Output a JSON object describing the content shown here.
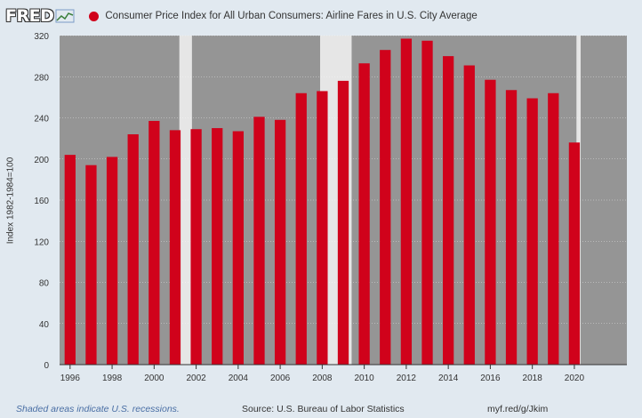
{
  "header": {
    "logo_text": "FRED",
    "logo_icon": "line-graph-icon",
    "title": "Consumer Price Index for All Urban Consumers: Airline Fares in U.S. City Average"
  },
  "footer": {
    "recession_note": "Shaded areas indicate U.S. recessions.",
    "source": "Source: U.S. Bureau of Labor Statistics",
    "url": "myf.red/g/Jkim"
  },
  "colors": {
    "bar": "#d0021b",
    "plot_bg": "#959595",
    "recession": "#e6e6e6",
    "page_bg": "#e1e9f0"
  },
  "chart_data": {
    "type": "bar",
    "title": "Consumer Price Index for All Urban Consumers: Airline Fares in U.S. City Average",
    "ylabel": "Index 1982-1984=100",
    "xlabel": "",
    "ylim": [
      0,
      320
    ],
    "yticks": [
      0,
      40,
      80,
      120,
      160,
      200,
      240,
      280,
      320
    ],
    "xticks": [
      "1996",
      "1998",
      "2000",
      "2002",
      "2004",
      "2006",
      "2008",
      "2010",
      "2012",
      "2014",
      "2016",
      "2018",
      "2020"
    ],
    "x": [
      1996,
      1997,
      1998,
      1999,
      2000,
      2001,
      2002,
      2003,
      2004,
      2005,
      2006,
      2007,
      2008,
      2009,
      2010,
      2011,
      2012,
      2013,
      2014,
      2015,
      2016,
      2017,
      2018,
      2019,
      2020
    ],
    "values": [
      204,
      194,
      202,
      224,
      237,
      228,
      229,
      230,
      227,
      241,
      238,
      264,
      266,
      276,
      293,
      306,
      317,
      315,
      300,
      291,
      277,
      267,
      259,
      264,
      216
    ],
    "recessions": [
      [
        2001.2,
        2001.8
      ],
      [
        2007.9,
        2009.4
      ],
      [
        2020.1,
        2020.3
      ]
    ],
    "grid": true
  }
}
